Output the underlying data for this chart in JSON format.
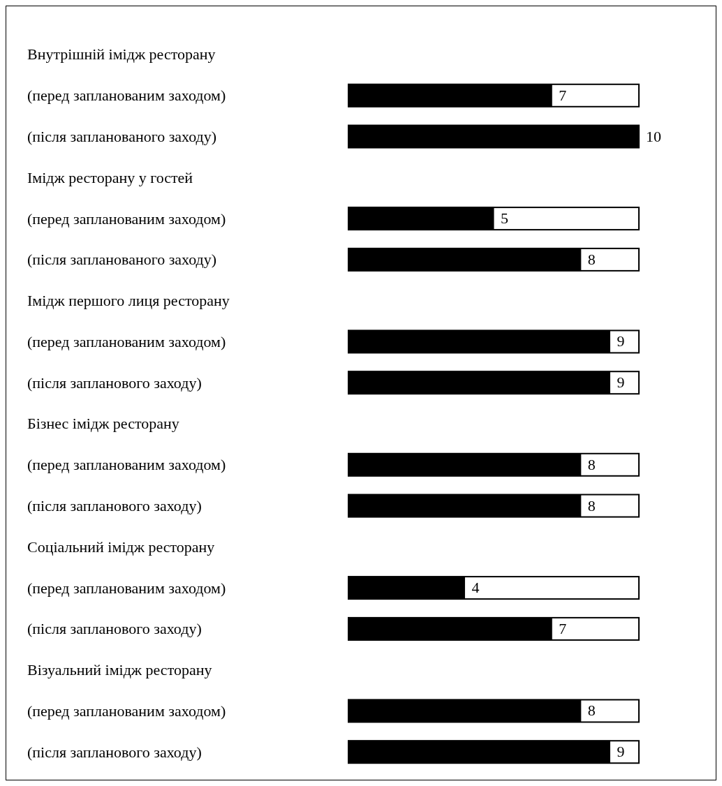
{
  "chart_data": {
    "type": "bar",
    "orientation": "horizontal",
    "tick_labels": "y",
    "categories": [
      "Внутрішній імідж ресторану",
      "(перед запланованим заходом)",
      "(після запланованого заходу)",
      "Імідж ресторану у гостей",
      "(перед запланованим заходом)",
      "(після запланованого заходу)",
      "Імідж першого лиця ресторану",
      "(перед запланованим заходом)",
      "(після запланового заходу)",
      "Бізнес імідж ресторану",
      "(перед запланованим заходом)",
      "(після запланового заходу)",
      "Соціальний імідж ресторану",
      "(перед запланованим заходом)",
      "(після запланового заходу)",
      "Візуальний імідж ресторану",
      "(перед запланованим заходом)",
      "(після запланового заходу)"
    ],
    "series": [
      {
        "color": "#000000",
        "values": [
          null,
          7,
          10,
          null,
          5,
          8,
          null,
          9,
          9,
          null,
          8,
          8,
          null,
          4,
          7,
          null,
          8,
          9
        ],
        "value_labels": [
          null,
          "7",
          "10",
          null,
          "5",
          "8",
          null,
          "9",
          "9",
          null,
          "8",
          "8",
          null,
          "4",
          "7",
          null,
          "8",
          "9"
        ]
      }
    ]
  }
}
